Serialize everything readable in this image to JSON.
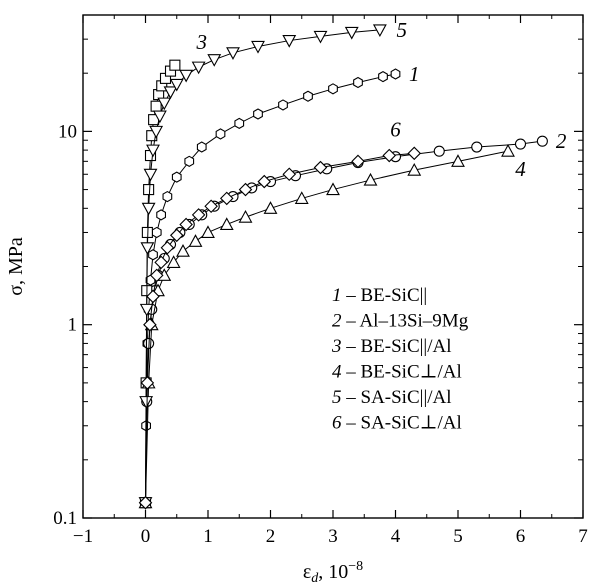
{
  "chart_data": {
    "type": "scatter",
    "xlabel": "ε_d, 10^-8",
    "xlabel_main": "ε",
    "xlabel_sub": "d",
    "xlabel_unit": ", 10",
    "xlabel_exp": "−8",
    "ylabel": "σ, MPa",
    "xlim": [
      -1,
      7
    ],
    "ylim": [
      0.1,
      40
    ],
    "y_scale": "log",
    "grid": false,
    "legend_position": "right-center",
    "x_ticks": [
      -1,
      0,
      1,
      2,
      3,
      4,
      5,
      6,
      7
    ],
    "x_tick_labels": [
      "−1",
      "0",
      "1",
      "2",
      "3",
      "4",
      "5",
      "6",
      "7"
    ],
    "y_ticks": [
      0.1,
      1,
      10
    ],
    "y_tick_labels": [
      "0.1",
      "1",
      "10"
    ],
    "legend": [
      {
        "num": "1",
        "text": " – BE-SiC||"
      },
      {
        "num": "2",
        "text": " – Al–13Si–9Mg"
      },
      {
        "num": "3",
        "text": " – BE-SiC||/Al"
      },
      {
        "num": "4",
        "text": " – BE-SiC⊥/Al"
      },
      {
        "num": "5",
        "text": " – SA-SiC||/Al"
      },
      {
        "num": "6",
        "text": " – SA-SiC⊥/Al"
      }
    ],
    "series": [
      {
        "name": "1",
        "marker": "hexagon",
        "x": [
          0,
          0.01,
          0.02,
          0.03,
          0.05,
          0.08,
          0.12,
          0.18,
          0.25,
          0.35,
          0.5,
          0.7,
          0.9,
          1.2,
          1.5,
          1.8,
          2.2,
          2.6,
          3.0,
          3.4,
          3.8,
          4.0
        ],
        "y": [
          0.12,
          0.3,
          0.5,
          0.8,
          1.2,
          1.7,
          2.3,
          3.0,
          3.7,
          4.6,
          5.8,
          7.0,
          8.3,
          9.7,
          11.0,
          12.3,
          13.7,
          15.2,
          16.6,
          17.9,
          19.2,
          19.8
        ]
      },
      {
        "name": "2",
        "marker": "circle",
        "x": [
          0,
          0.02,
          0.05,
          0.1,
          0.15,
          0.2,
          0.3,
          0.4,
          0.55,
          0.7,
          0.9,
          1.1,
          1.4,
          1.7,
          2.0,
          2.4,
          2.9,
          3.4,
          4.0,
          4.7,
          5.3,
          6.0,
          6.35
        ],
        "y": [
          0.12,
          0.4,
          0.8,
          1.2,
          1.5,
          1.8,
          2.2,
          2.6,
          3.0,
          3.3,
          3.7,
          4.1,
          4.6,
          5.1,
          5.5,
          5.9,
          6.4,
          6.9,
          7.4,
          7.9,
          8.3,
          8.6,
          8.9
        ]
      },
      {
        "name": "3",
        "marker": "square",
        "x": [
          0,
          0.01,
          0.02,
          0.03,
          0.05,
          0.08,
          0.1,
          0.13,
          0.17,
          0.21,
          0.26,
          0.32,
          0.4,
          0.47
        ],
        "y": [
          0.12,
          0.5,
          1.5,
          3.0,
          5.0,
          7.5,
          9.5,
          11.5,
          13.5,
          15.5,
          17.2,
          18.8,
          20.5,
          22.0
        ]
      },
      {
        "name": "4",
        "marker": "triangle-up",
        "x": [
          0,
          0.05,
          0.1,
          0.2,
          0.3,
          0.45,
          0.6,
          0.8,
          1.0,
          1.3,
          1.6,
          2.0,
          2.5,
          3.0,
          3.6,
          4.3,
          5.0,
          5.8
        ],
        "y": [
          0.12,
          0.5,
          1.0,
          1.5,
          1.8,
          2.1,
          2.4,
          2.7,
          3.0,
          3.3,
          3.6,
          4.0,
          4.5,
          5.0,
          5.6,
          6.3,
          7.0,
          7.9
        ]
      },
      {
        "name": "5",
        "marker": "triangle-down",
        "x": [
          0,
          0.01,
          0.02,
          0.03,
          0.05,
          0.08,
          0.12,
          0.17,
          0.23,
          0.3,
          0.4,
          0.5,
          0.65,
          0.85,
          1.1,
          1.4,
          1.8,
          2.3,
          2.8,
          3.3,
          3.75
        ],
        "y": [
          0.12,
          0.4,
          1.2,
          2.5,
          4.0,
          6.0,
          8.0,
          10.0,
          12.0,
          14.0,
          16.0,
          17.5,
          19.5,
          21.5,
          23.5,
          25.5,
          27.5,
          29.5,
          31.0,
          32.5,
          33.5
        ]
      },
      {
        "name": "6",
        "marker": "diamond",
        "x": [
          0,
          0.03,
          0.07,
          0.12,
          0.18,
          0.25,
          0.35,
          0.5,
          0.65,
          0.85,
          1.05,
          1.3,
          1.6,
          1.9,
          2.3,
          2.8,
          3.4,
          3.9,
          4.3
        ],
        "y": [
          0.12,
          0.5,
          1.0,
          1.4,
          1.8,
          2.1,
          2.5,
          2.9,
          3.3,
          3.7,
          4.1,
          4.5,
          5.0,
          5.5,
          6.0,
          6.5,
          7.0,
          7.5,
          7.7
        ]
      }
    ],
    "series_labels": [
      {
        "text": "1",
        "x": 4.3,
        "y": 19.8
      },
      {
        "text": "2",
        "x": 6.65,
        "y": 8.9
      },
      {
        "text": "3",
        "x": 0.9,
        "y": 29.0
      },
      {
        "text": "4",
        "x": 6.0,
        "y": 6.4
      },
      {
        "text": "5",
        "x": 4.1,
        "y": 33.5
      },
      {
        "text": "6",
        "x": 4.0,
        "y": 10.2
      }
    ]
  }
}
